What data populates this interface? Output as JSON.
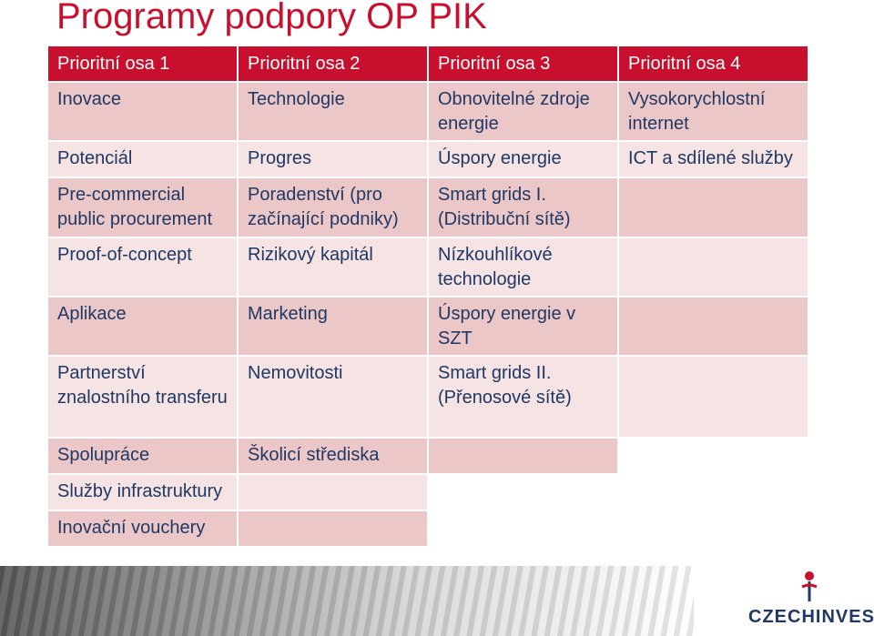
{
  "title": "Programy podpory OP PIK",
  "table": {
    "headers": [
      "Prioritní osa 1",
      "Prioritní osa 2",
      "Prioritní osa 3",
      "Prioritní osa 4"
    ],
    "rows": [
      [
        "Inovace",
        "Technologie",
        "Obnovitelné zdroje energie",
        "Vysokorychlostní internet"
      ],
      [
        "Potenciál",
        "Progres",
        "Úspory energie",
        "ICT a sdílené služby"
      ],
      [
        "Pre-commercial public procurement",
        "Poradenství (pro začínající podniky)",
        "Smart grids I. (Distribuční sítě)",
        ""
      ],
      [
        "Proof-of-concept",
        "Rizikový kapitál",
        "Nízkouhlíkové technologie",
        ""
      ],
      [
        "Aplikace",
        "Marketing",
        "Úspory energie v SZT",
        ""
      ],
      [
        "Partnerství znalostního transferu",
        "Nemovitosti",
        "Smart grids II. (Přenosové sítě)",
        ""
      ],
      [
        "Spolupráce",
        "Školicí střediska",
        "",
        ""
      ],
      [
        "Služby infrastruktury",
        "",
        "",
        ""
      ],
      [
        "Inovační vouchery",
        "",
        "",
        ""
      ]
    ]
  },
  "logo": {
    "text": "CZECHINVEST"
  },
  "colors": {
    "accent": "#c8102e",
    "row_dark": "#ecc7c8",
    "row_light": "#f6e3e4",
    "text": "#1f3864"
  }
}
